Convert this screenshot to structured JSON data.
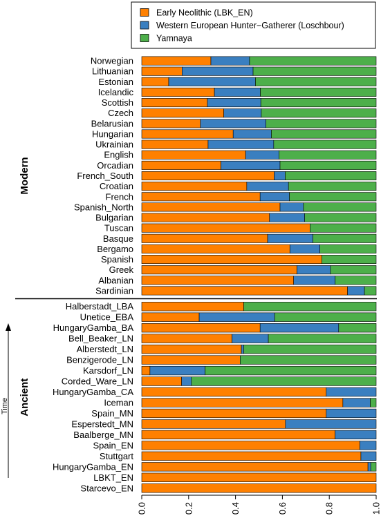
{
  "chart_data": {
    "type": "bar",
    "orientation": "horizontal",
    "stacked": true,
    "legend": {
      "placement": "top",
      "entries": [
        {
          "name": "Early Neolithic (LBK_EN)",
          "color": "#FF8000"
        },
        {
          "name": "Western European Hunter−Gatherer (Loschbour)",
          "color": "#3A7FC0"
        },
        {
          "name": "Yamnaya",
          "color": "#4DAF4A"
        }
      ]
    },
    "xlim": [
      0,
      1
    ],
    "xticks": [
      "0.0",
      "0.2",
      "0.4",
      "0.6",
      "0.8",
      "1.0"
    ],
    "series_names": [
      "Early Neolithic (LBK_EN)",
      "Western European Hunter−Gatherer (Loschbour)",
      "Yamnaya"
    ],
    "groups": [
      {
        "label": "Modern",
        "rows": [
          {
            "name": "Norwegian",
            "values": [
              0.295,
              0.165,
              0.54
            ]
          },
          {
            "name": "Lithuanian",
            "values": [
              0.172,
              0.303,
              0.525
            ]
          },
          {
            "name": "Estonian",
            "values": [
              0.115,
              0.37,
              0.515
            ]
          },
          {
            "name": "Icelandic",
            "values": [
              0.31,
              0.196,
              0.494
            ]
          },
          {
            "name": "Scottish",
            "values": [
              0.28,
              0.228,
              0.492
            ]
          },
          {
            "name": "Czech",
            "values": [
              0.35,
              0.16,
              0.49
            ]
          },
          {
            "name": "Belarusian",
            "values": [
              0.25,
              0.28,
              0.47
            ]
          },
          {
            "name": "Hungarian",
            "values": [
              0.39,
              0.163,
              0.447
            ]
          },
          {
            "name": "Ukrainian",
            "values": [
              0.283,
              0.28,
              0.437
            ]
          },
          {
            "name": "English",
            "values": [
              0.443,
              0.142,
              0.415
            ]
          },
          {
            "name": "Orcadian",
            "values": [
              0.338,
              0.252,
              0.41
            ]
          },
          {
            "name": "French_South",
            "values": [
              0.565,
              0.047,
              0.388
            ]
          },
          {
            "name": "Croatian",
            "values": [
              0.448,
              0.178,
              0.374
            ]
          },
          {
            "name": "French",
            "values": [
              0.505,
              0.125,
              0.37
            ]
          },
          {
            "name": "Spanish_North",
            "values": [
              0.59,
              0.1,
              0.31
            ]
          },
          {
            "name": "Bulgarian",
            "values": [
              0.545,
              0.15,
              0.305
            ]
          },
          {
            "name": "Tuscan",
            "values": [
              0.718,
              0.0,
              0.282
            ]
          },
          {
            "name": "Basque",
            "values": [
              0.537,
              0.193,
              0.27
            ]
          },
          {
            "name": "Bergamo",
            "values": [
              0.632,
              0.128,
              0.24
            ]
          },
          {
            "name": "Spanish",
            "values": [
              0.768,
              0.0,
              0.232
            ]
          },
          {
            "name": "Greek",
            "values": [
              0.662,
              0.143,
              0.195
            ]
          },
          {
            "name": "Albanian",
            "values": [
              0.648,
              0.177,
              0.175
            ]
          },
          {
            "name": "Sardinian",
            "values": [
              0.878,
              0.072,
              0.05
            ]
          }
        ]
      },
      {
        "label": "Ancient",
        "axis_note": "Time",
        "rows": [
          {
            "name": "Halberstadt_LBA",
            "values": [
              0.435,
              0.0,
              0.565
            ]
          },
          {
            "name": "Unetice_EBA",
            "values": [
              0.245,
              0.322,
              0.433
            ]
          },
          {
            "name": "HungaryGamba_BA",
            "values": [
              0.505,
              0.335,
              0.16
            ]
          },
          {
            "name": "Bell_Beaker_LN",
            "values": [
              0.385,
              0.155,
              0.46
            ]
          },
          {
            "name": "Alberstedt_LN",
            "values": [
              0.425,
              0.01,
              0.565
            ]
          },
          {
            "name": "Benzigerode_LN",
            "values": [
              0.42,
              0.0,
              0.58
            ]
          },
          {
            "name": "Karsdorf_LN",
            "values": [
              0.035,
              0.235,
              0.73
            ]
          },
          {
            "name": "Corded_Ware_LN",
            "values": [
              0.17,
              0.042,
              0.788
            ]
          },
          {
            "name": "HungaryGamba_CA",
            "values": [
              0.787,
              0.213,
              0.0
            ]
          },
          {
            "name": "Iceman",
            "values": [
              0.858,
              0.117,
              0.025
            ]
          },
          {
            "name": "Spain_MN",
            "values": [
              0.787,
              0.213,
              0.0
            ]
          },
          {
            "name": "Esperstedt_MN",
            "values": [
              0.613,
              0.387,
              0.0
            ]
          },
          {
            "name": "Baalberge_MN",
            "values": [
              0.825,
              0.175,
              0.0
            ]
          },
          {
            "name": "Spain_EN",
            "values": [
              0.93,
              0.07,
              0.0
            ]
          },
          {
            "name": "Stuttgart",
            "values": [
              0.935,
              0.065,
              0.0
            ]
          },
          {
            "name": "HungaryGamba_EN",
            "values": [
              0.965,
              0.012,
              0.023
            ]
          },
          {
            "name": "LBKT_EN",
            "values": [
              1.0,
              0.0,
              0.0
            ]
          },
          {
            "name": "Starcevo_EN",
            "values": [
              1.0,
              0.0,
              0.0
            ]
          }
        ]
      }
    ]
  }
}
